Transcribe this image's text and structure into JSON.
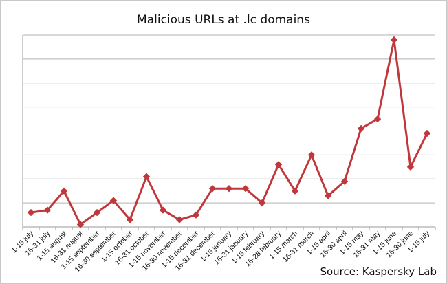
{
  "chart_data": {
    "type": "line",
    "title": "Malicious URLs at .lc domains",
    "categories": [
      "1-15 july",
      "16-31 july",
      "1-15 august",
      "16-31 august",
      "1-15 september",
      "16-30 september",
      "1-15 october",
      "16-31 october",
      "1-15 november",
      "16-30 november",
      "1-15 december",
      "16-31 december",
      "1-15 january",
      "16-31 january",
      "1-15 february",
      "16-28 february",
      "1-15 march",
      "16-31 march",
      "1-15 april",
      "16-30 april",
      "1-15 may",
      "16-31 may",
      "1-15 june",
      "16-30 june",
      "1-15 july"
    ],
    "series": [
      {
        "values": [
          0.6,
          0.7,
          1.5,
          0.1,
          0.6,
          1.1,
          0.3,
          2.1,
          0.7,
          0.3,
          0.5,
          1.6,
          1.6,
          1.6,
          1.0,
          2.6,
          1.5,
          3.0,
          1.3,
          1.9,
          4.1,
          4.5,
          7.8,
          2.5,
          3.9
        ]
      }
    ],
    "ylim": [
      0,
      8
    ],
    "grid": true,
    "y_tick_labels_shown": false,
    "line_color": "#c0383b",
    "source": "Source: Kaspersky Lab"
  }
}
